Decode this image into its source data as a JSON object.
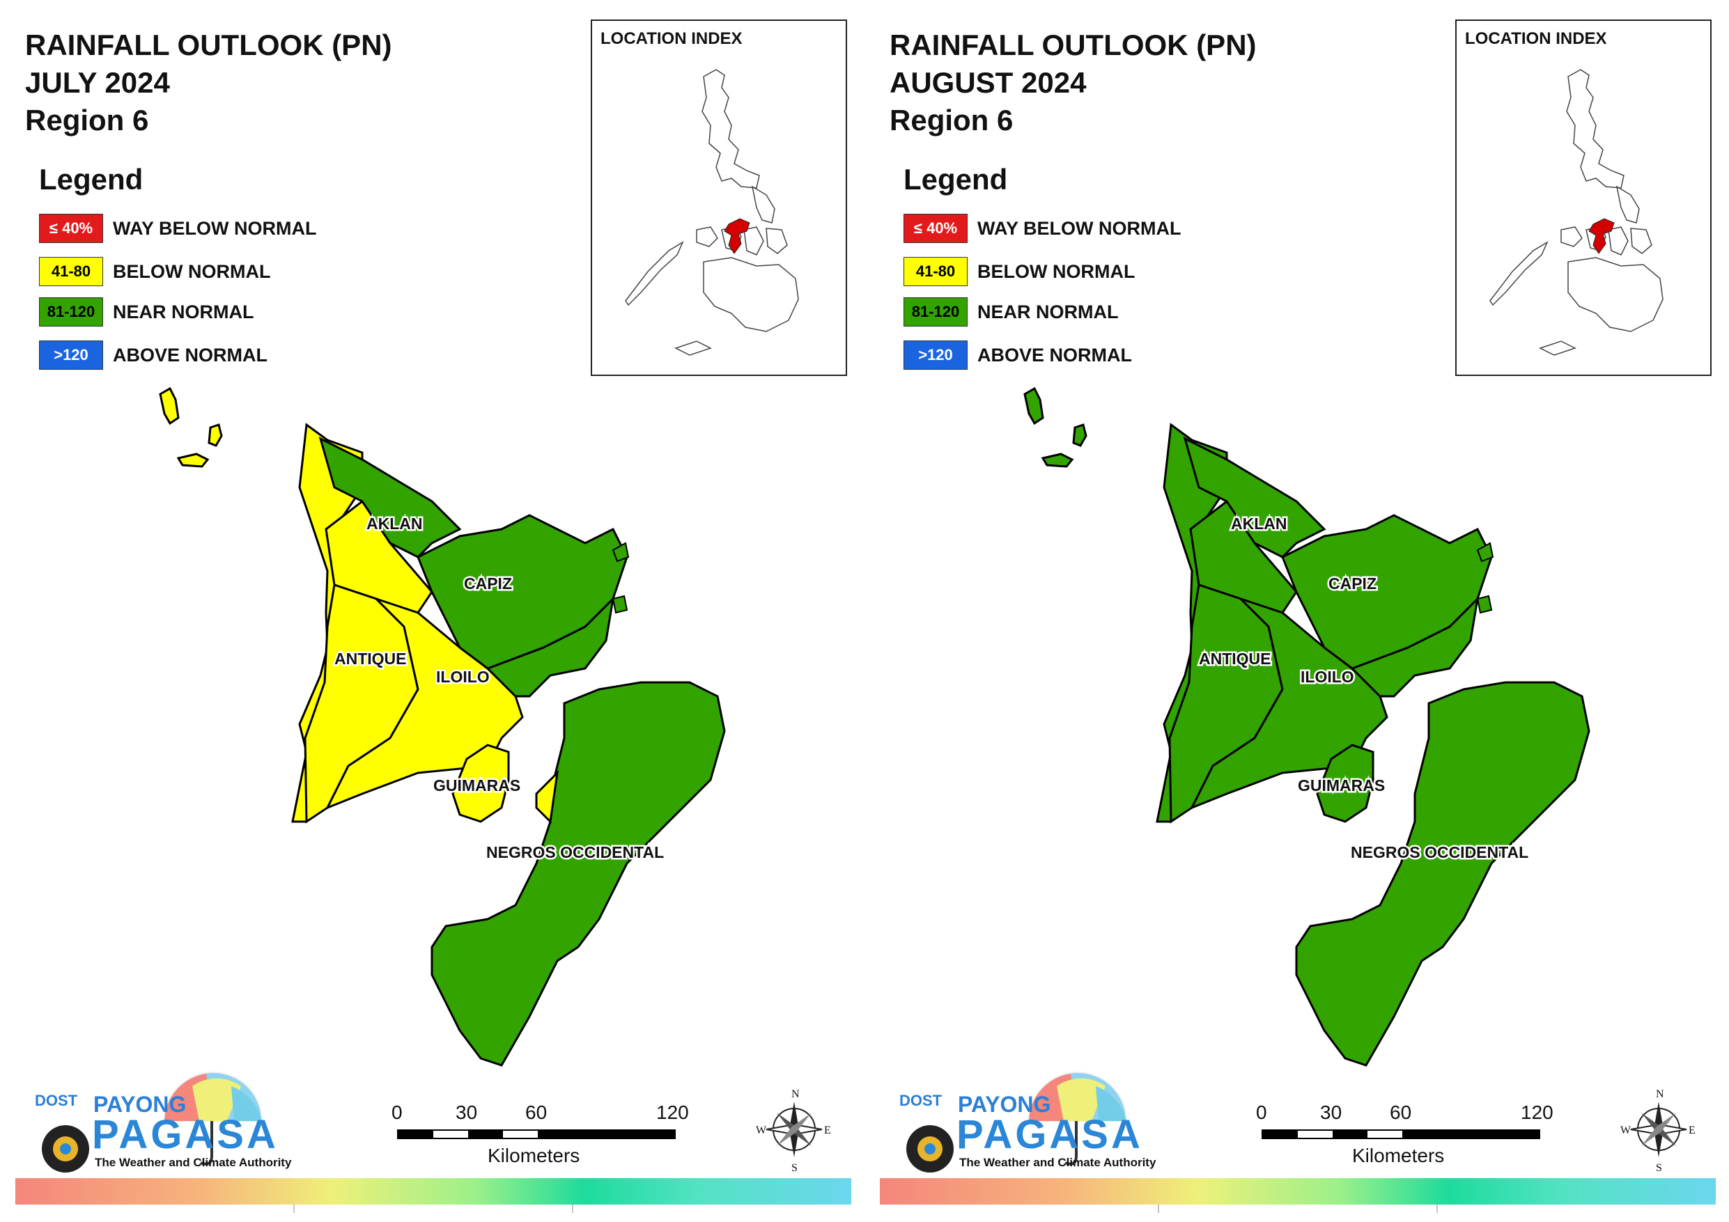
{
  "panels": [
    {
      "title_line1": "RAINFALL OUTLOOK (PN)",
      "title_line2": "JULY 2024",
      "title_line3": "Region 6",
      "provinces": {
        "aklan": "AKLAN",
        "capiz": "CAPIZ",
        "antique": "ANTIQUE",
        "iloilo": "ILOILO",
        "guimaras": "GUIMARAS",
        "negros": "NEGROS OCCIDENTAL"
      },
      "province_categories": {
        "AKLAN": "near_normal (east), below_normal (west strip)",
        "CAPIZ": "near_normal",
        "ANTIQUE": "below_normal",
        "ILOILO": "below_normal (west), near_normal (northeast)",
        "GUIMARAS": "below_normal",
        "NEGROS OCCIDENTAL": "near_normal"
      }
    },
    {
      "title_line1": "RAINFALL OUTLOOK (PN)",
      "title_line2": "AUGUST 2024",
      "title_line3": "Region 6",
      "provinces": {
        "aklan": "AKLAN",
        "capiz": "CAPIZ",
        "antique": "ANTIQUE",
        "iloilo": "ILOILO",
        "guimaras": "GUIMARAS",
        "negros": "NEGROS OCCIDENTAL"
      },
      "province_categories": {
        "AKLAN": "near_normal",
        "CAPIZ": "near_normal",
        "ANTIQUE": "near_normal",
        "ILOILO": "near_normal",
        "GUIMARAS": "near_normal",
        "NEGROS OCCIDENTAL": "near_normal"
      }
    }
  ],
  "legend": {
    "title": "Legend",
    "items": [
      {
        "range": "≤ 40%",
        "label": "WAY BELOW NORMAL",
        "color": "#e31a1c"
      },
      {
        "range": "41-80",
        "label": "BELOW NORMAL",
        "color": "#ffff00"
      },
      {
        "range": "81-120",
        "label": "NEAR NORMAL",
        "color": "#33a300"
      },
      {
        "range": ">120",
        "label": "ABOVE NORMAL",
        "color": "#1b64e0"
      }
    ]
  },
  "inset": {
    "title": "LOCATION INDEX",
    "highlight_color": "#d40000"
  },
  "scale": {
    "ticks": [
      "0",
      "30",
      "60",
      "120"
    ],
    "unit": "Kilometers"
  },
  "compass": {
    "n": "N",
    "s": "S",
    "e": "E",
    "w": "W"
  },
  "logo": {
    "dost": "DOST",
    "payong": "PAYONG",
    "pagasa": "PAGASA",
    "tagline": "The Weather and Climate Authority"
  },
  "colors": {
    "below_normal": "#ffff00",
    "near_normal": "#33a300",
    "outline": "#000000"
  }
}
